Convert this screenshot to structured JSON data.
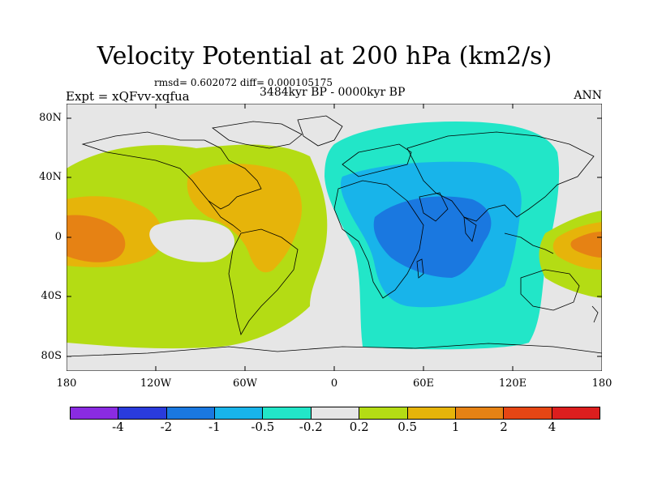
{
  "title": "Velocity Potential at 200 hPa (km2/s)",
  "stats": "rmsd= 0.602072  diff= 0.000105175",
  "experiment": "Expt = xQFvv-xqfua",
  "period": "3484kyr BP - 0000kyr BP",
  "season": "ANN",
  "map": {
    "projection": "cylindrical equidistant",
    "longitude_range": [
      -180,
      180
    ],
    "latitude_range": [
      -90,
      90
    ],
    "background_color": "#e6e6e6",
    "y_tick_labels": [
      "80N",
      "40N",
      "0",
      "40S",
      "80S"
    ],
    "x_tick_labels": [
      "180",
      "120W",
      "60W",
      "0",
      "60E",
      "120E",
      "180"
    ]
  },
  "colorbar": {
    "colors": [
      "#8a2be2",
      "#2a3bdc",
      "#1a78e0",
      "#18b4ea",
      "#22e6c8",
      "#e6e6e6",
      "#b4dc14",
      "#e6b40a",
      "#e68214",
      "#e64614",
      "#dc1e1e"
    ],
    "labels": [
      "-4",
      "-2",
      "-1",
      "-0.5",
      "-0.2",
      "0.2",
      "0.5",
      "1",
      "2",
      "4"
    ]
  }
}
